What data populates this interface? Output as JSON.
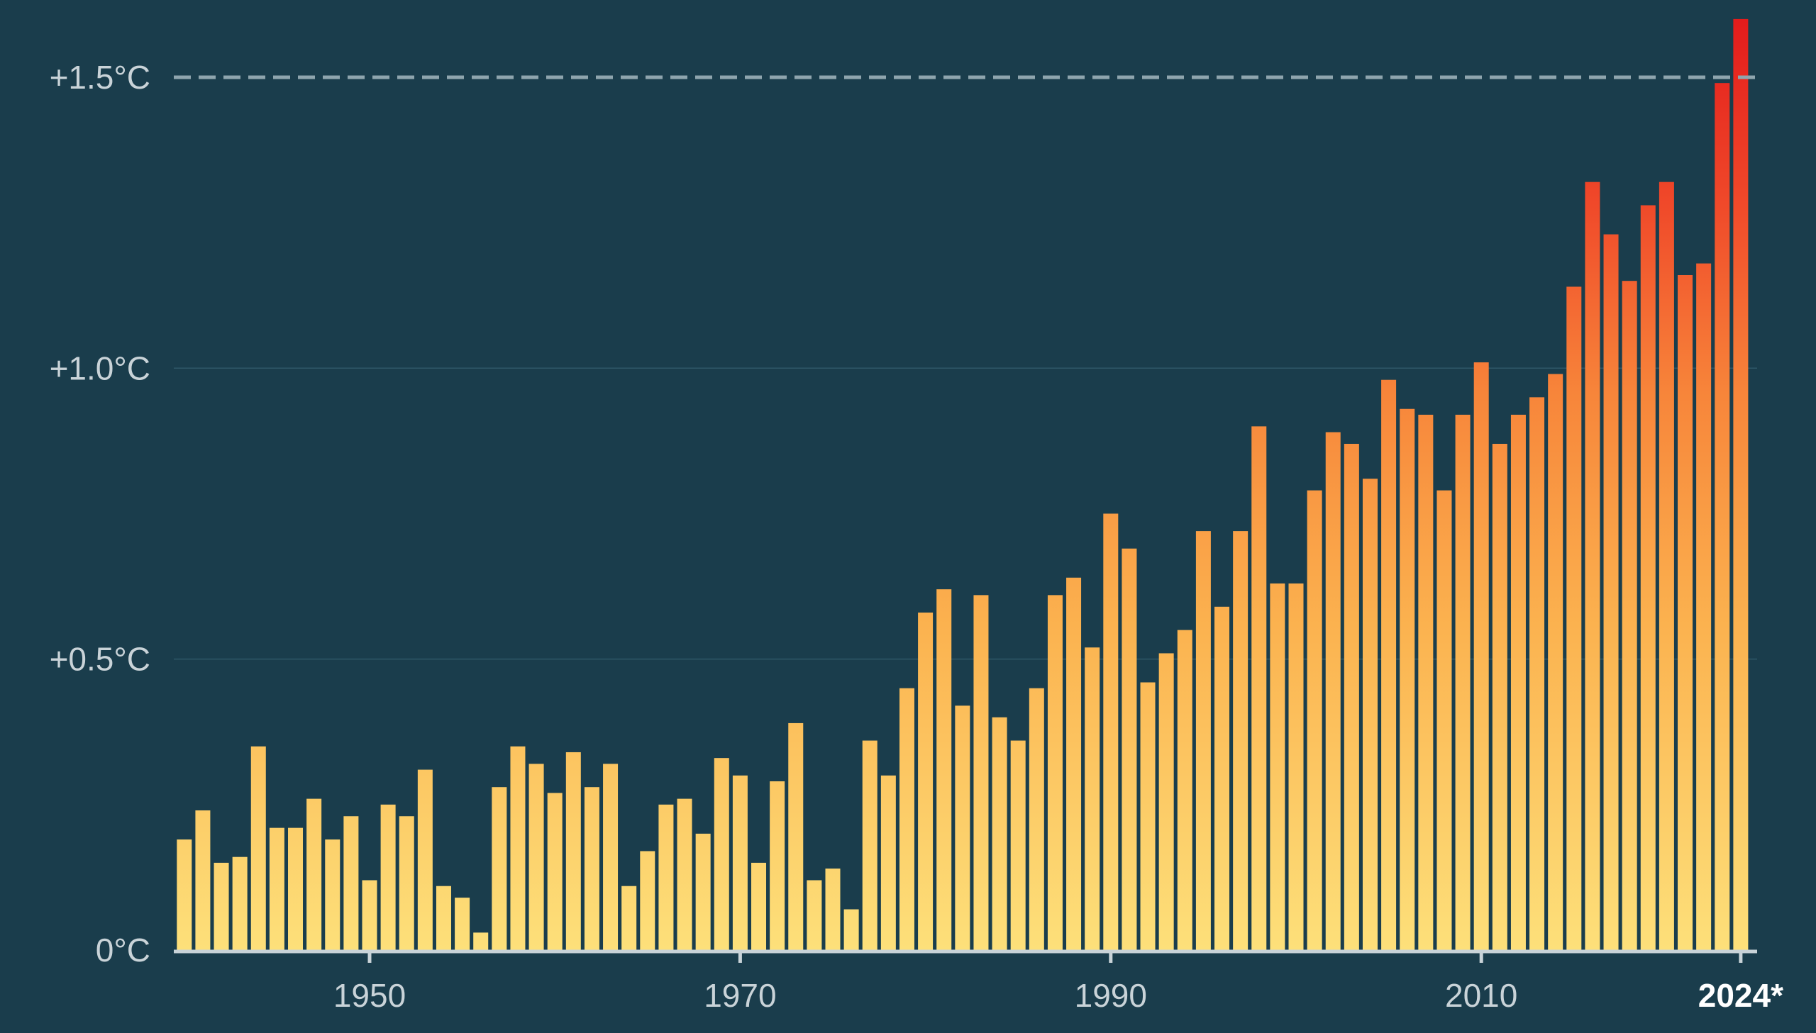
{
  "chart_data": {
    "type": "bar",
    "title": "",
    "xlabel": "",
    "ylabel": "",
    "ylim": [
      0,
      1.6
    ],
    "xlim": [
      1940,
      2024
    ],
    "grid": true,
    "y_ticks": [
      {
        "value": 0,
        "label": "0°C"
      },
      {
        "value": 0.5,
        "label": "+0.5°C"
      },
      {
        "value": 1.0,
        "label": "+1.0°C"
      },
      {
        "value": 1.5,
        "label": "+1.5°C"
      }
    ],
    "x_ticks": [
      {
        "value": 1950,
        "label": "1950"
      },
      {
        "value": 1970,
        "label": "1970"
      },
      {
        "value": 1990,
        "label": "1990"
      },
      {
        "value": 2010,
        "label": "2010"
      },
      {
        "value": 2024,
        "label": "2024*",
        "highlight": true
      }
    ],
    "reference_line": {
      "value": 1.5,
      "style": "dashed",
      "color": "#8fa5ae"
    },
    "colors": {
      "background": "#1a3d4c",
      "low": "#fde07a",
      "mid": "#f99a3c",
      "high": "#e31c1c",
      "axis": "#c9d3d8"
    },
    "x": [
      1940,
      1941,
      1942,
      1943,
      1944,
      1945,
      1946,
      1947,
      1948,
      1949,
      1950,
      1951,
      1952,
      1953,
      1954,
      1955,
      1956,
      1957,
      1958,
      1959,
      1960,
      1961,
      1962,
      1963,
      1964,
      1965,
      1966,
      1967,
      1968,
      1969,
      1970,
      1971,
      1972,
      1973,
      1974,
      1975,
      1976,
      1977,
      1978,
      1979,
      1980,
      1981,
      1982,
      1983,
      1984,
      1985,
      1986,
      1987,
      1988,
      1989,
      1990,
      1991,
      1992,
      1993,
      1994,
      1995,
      1996,
      1997,
      1998,
      1999,
      2000,
      2001,
      2002,
      2003,
      2004,
      2005,
      2006,
      2007,
      2008,
      2009,
      2010,
      2011,
      2012,
      2013,
      2014,
      2015,
      2016,
      2017,
      2018,
      2019,
      2020,
      2021,
      2022,
      2023,
      2024
    ],
    "values": [
      0.19,
      0.24,
      0.15,
      0.16,
      0.35,
      0.21,
      0.21,
      0.26,
      0.19,
      0.23,
      0.12,
      0.25,
      0.23,
      0.31,
      0.11,
      0.09,
      0.03,
      0.28,
      0.35,
      0.32,
      0.27,
      0.34,
      0.28,
      0.32,
      0.11,
      0.17,
      0.25,
      0.26,
      0.2,
      0.33,
      0.3,
      0.15,
      0.29,
      0.39,
      0.12,
      0.14,
      0.07,
      0.36,
      0.3,
      0.45,
      0.58,
      0.62,
      0.42,
      0.61,
      0.4,
      0.36,
      0.45,
      0.61,
      0.64,
      0.52,
      0.75,
      0.69,
      0.46,
      0.51,
      0.55,
      0.72,
      0.59,
      0.72,
      0.9,
      0.63,
      0.63,
      0.79,
      0.89,
      0.87,
      0.81,
      0.98,
      0.93,
      0.92,
      0.79,
      0.92,
      1.01,
      0.87,
      0.92,
      0.95,
      0.99,
      1.14,
      1.32,
      1.23,
      1.15,
      1.28,
      1.32,
      1.16,
      1.18,
      1.49,
      1.6
    ]
  }
}
